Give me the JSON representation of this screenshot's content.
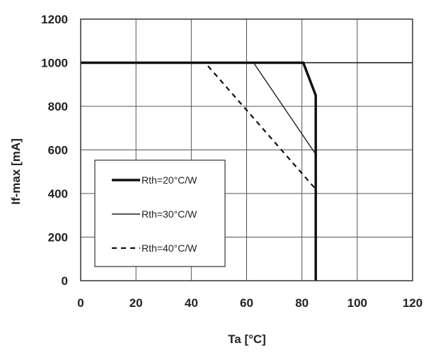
{
  "chart_data": {
    "type": "line",
    "title": "",
    "xlabel": "Ta [°C]",
    "ylabel": "If-max  [mA]",
    "xlim": [
      0,
      120
    ],
    "ylim": [
      0,
      1200
    ],
    "xticks": [
      0,
      20,
      40,
      60,
      80,
      100,
      120
    ],
    "yticks": [
      0,
      200,
      400,
      600,
      800,
      1000,
      1200
    ],
    "xtick_labels": [
      "0",
      "20",
      "40",
      "60",
      "80",
      "100",
      "120"
    ],
    "ytick_labels": [
      "0",
      "200",
      "400",
      "600",
      "800",
      "1000",
      "1200"
    ],
    "grid": true,
    "legend_position": "bottom-left",
    "reference_line": {
      "y": 1000
    },
    "series": [
      {
        "name": "Rth=20°C/W",
        "style": "solid-thick",
        "x": [
          0,
          80.5,
          85,
          85,
          85
        ],
        "y": [
          1000,
          1000,
          850,
          420,
          0
        ]
      },
      {
        "name": "Rth=30°C/W",
        "style": "solid-thin",
        "x": [
          0,
          62.5,
          85
        ],
        "y": [
          1000,
          1000,
          580
        ]
      },
      {
        "name": "Rth=40°C/W",
        "style": "dashed",
        "x": [
          0,
          45,
          85
        ],
        "y": [
          1000,
          1000,
          420
        ]
      }
    ]
  }
}
